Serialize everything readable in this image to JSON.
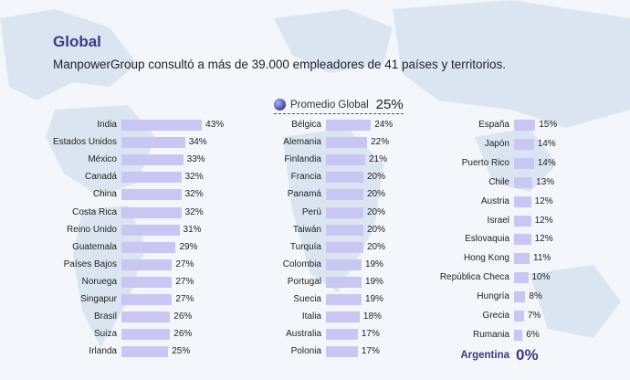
{
  "header": {
    "title": "Global",
    "subtitle": "ManpowerGroup consultó a más de 39.000 empleadores de 41 países y territorios."
  },
  "global_average": {
    "label": "Promedio Global",
    "value": "25%"
  },
  "colors": {
    "bar": "#c8c6f3",
    "title": "#3a3a86",
    "map": "#d9e3f0"
  },
  "highlight": {
    "name": "Argentina",
    "value": "0%"
  },
  "chart_data": {
    "type": "bar",
    "orientation": "horizontal",
    "unit": "%",
    "columns": [
      {
        "categories": [
          "India",
          "Estados Unidos",
          "México",
          "Canadá",
          "China",
          "Costa Rica",
          "Reino Unido",
          "Guatemala",
          "Países Bajos",
          "Noruega",
          "Singapur",
          "Brasil",
          "Suiza",
          "Irlanda"
        ],
        "values": [
          43,
          34,
          33,
          32,
          32,
          32,
          31,
          29,
          27,
          27,
          27,
          26,
          26,
          25
        ]
      },
      {
        "categories": [
          "Bélgica",
          "Alemania",
          "Finlandia",
          "Francia",
          "Panamá",
          "Perú",
          "Taiwán",
          "Turquía",
          "Colombia",
          "Portugal",
          "Suecia",
          "Italia",
          "Australia",
          "Polonia"
        ],
        "values": [
          24,
          22,
          21,
          20,
          20,
          20,
          20,
          20,
          19,
          19,
          19,
          18,
          17,
          17
        ]
      },
      {
        "categories": [
          "España",
          "Japón",
          "Puerto Rico",
          "Chile",
          "Austria",
          "Israel",
          "Eslovaquia",
          "Hong Kong",
          "República Checa",
          "Hungría",
          "Grecia",
          "Rumania"
        ],
        "values": [
          15,
          14,
          14,
          13,
          12,
          12,
          12,
          11,
          10,
          8,
          7,
          6
        ]
      }
    ]
  }
}
